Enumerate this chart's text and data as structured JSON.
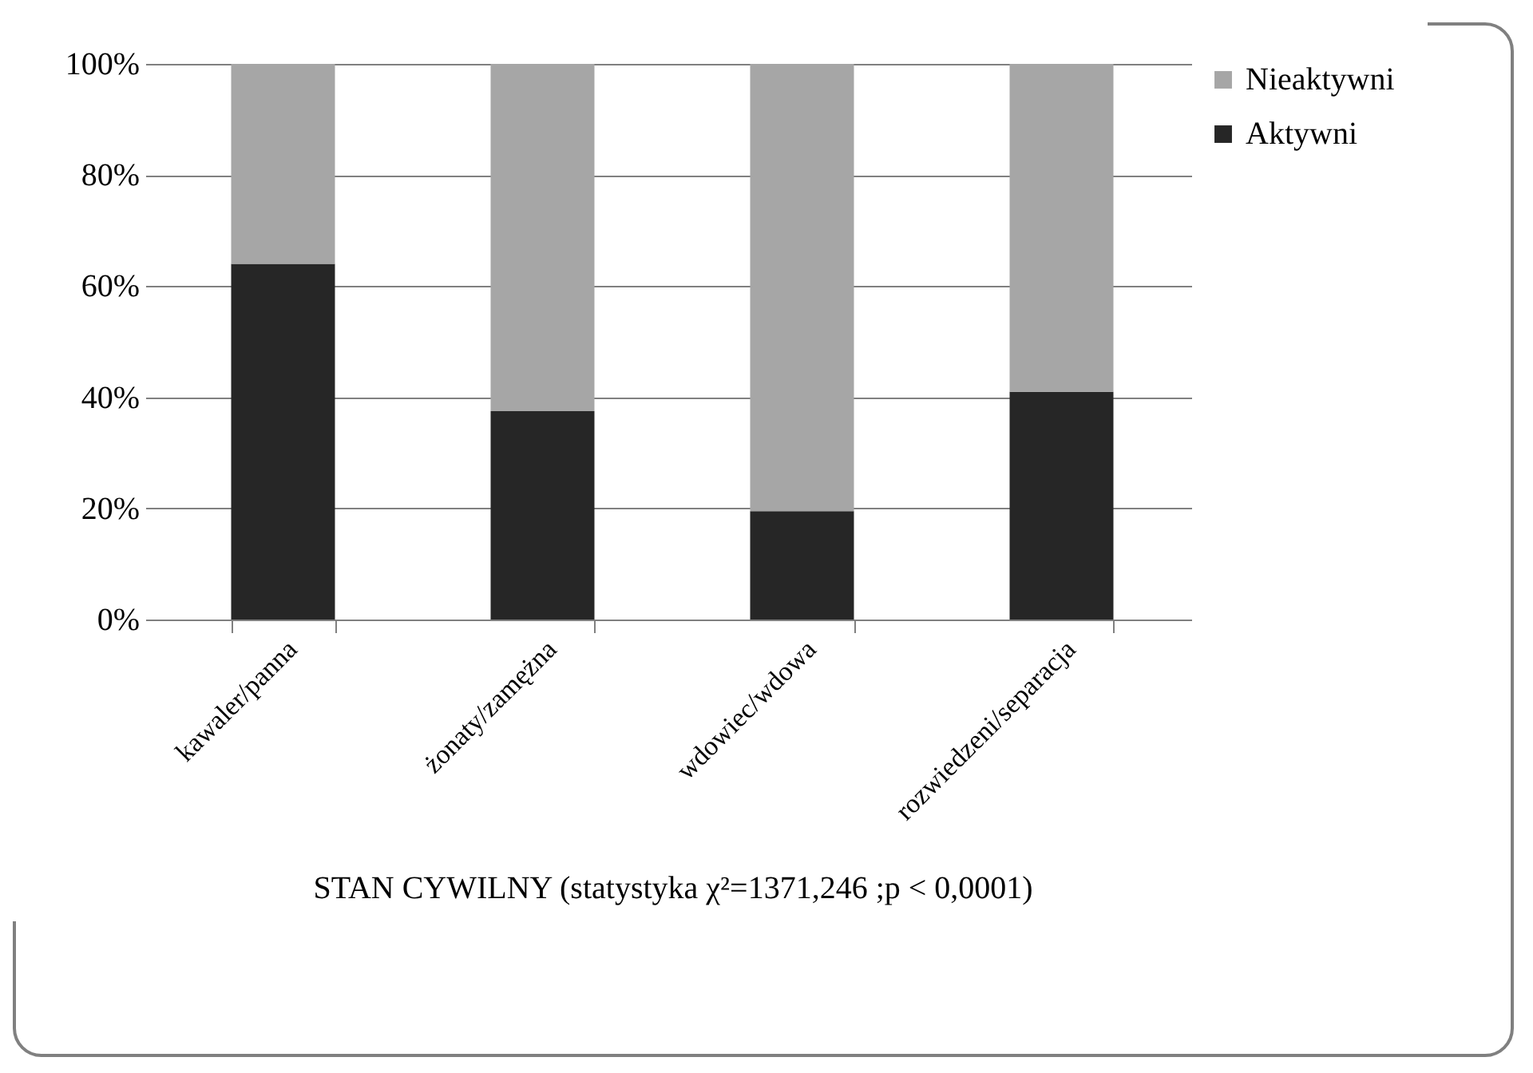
{
  "chart_data": {
    "type": "bar",
    "stacked": true,
    "xlabel": "STAN CYWILNY (statystyka χ²=1371,246 ;p < 0,0001)",
    "categories": [
      "kawaler/panna",
      "żonaty/zamężna",
      "wdowiec/wdowa",
      "rozwiedzeni/separacja"
    ],
    "series": [
      {
        "name": "Aktywni",
        "color": "#262626",
        "values": [
          64,
          37.5,
          19.5,
          41
        ]
      },
      {
        "name": "Nieaktywni",
        "color": "#a6a6a6",
        "values": [
          36,
          62.5,
          80.5,
          59
        ]
      }
    ],
    "ylim": [
      0,
      100
    ],
    "yticks": [
      {
        "value": 0,
        "label": "0%"
      },
      {
        "value": 20,
        "label": "20%"
      },
      {
        "value": 40,
        "label": "40%"
      },
      {
        "value": 60,
        "label": "60%"
      },
      {
        "value": 80,
        "label": "80%"
      },
      {
        "value": 100,
        "label": "100%"
      }
    ],
    "grid": "y",
    "legend": "right"
  }
}
